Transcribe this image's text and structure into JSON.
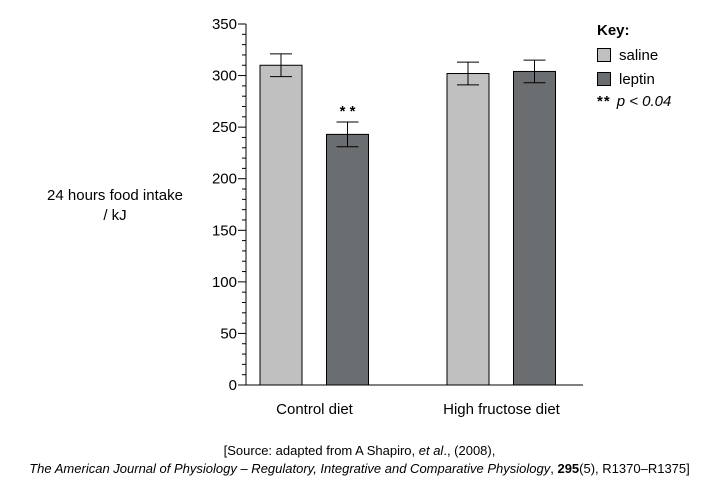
{
  "chart_data": {
    "type": "bar",
    "title": "",
    "ylabel_lines": [
      "24 hours food intake",
      "/ kJ"
    ],
    "xlabel": "",
    "categories": [
      "Control diet",
      "High fructose diet"
    ],
    "series": [
      {
        "name": "saline",
        "color": "#c0c0c0",
        "values": [
          310,
          302
        ],
        "errors": [
          11,
          11
        ]
      },
      {
        "name": "leptin",
        "color": "#6b6e71",
        "values": [
          243,
          304
        ],
        "errors": [
          12,
          11
        ]
      }
    ],
    "ylim": [
      0,
      350
    ],
    "yticks": [
      0,
      50,
      100,
      150,
      200,
      250,
      300,
      350
    ],
    "y_minor_step": 10,
    "grid": false,
    "annotations": [
      {
        "text": "* *",
        "category": "Control diet",
        "series": "leptin"
      }
    ],
    "legend": {
      "title": "Key:",
      "position": "top-right",
      "significance_stars": "**",
      "significance_label": "p < 0.04"
    }
  },
  "source": {
    "line1_prefix": "[Source: adapted from A Shapiro, ",
    "line1_italic": "et al",
    "line1_suffix": "., (2008),",
    "line2_journal": "The American Journal of Physiology – Regulatory, Integrative and Comparative Physiology",
    "line2_sep": ", ",
    "line2_volume": "295",
    "line2_rest": "(5), R1370–R1375]"
  }
}
